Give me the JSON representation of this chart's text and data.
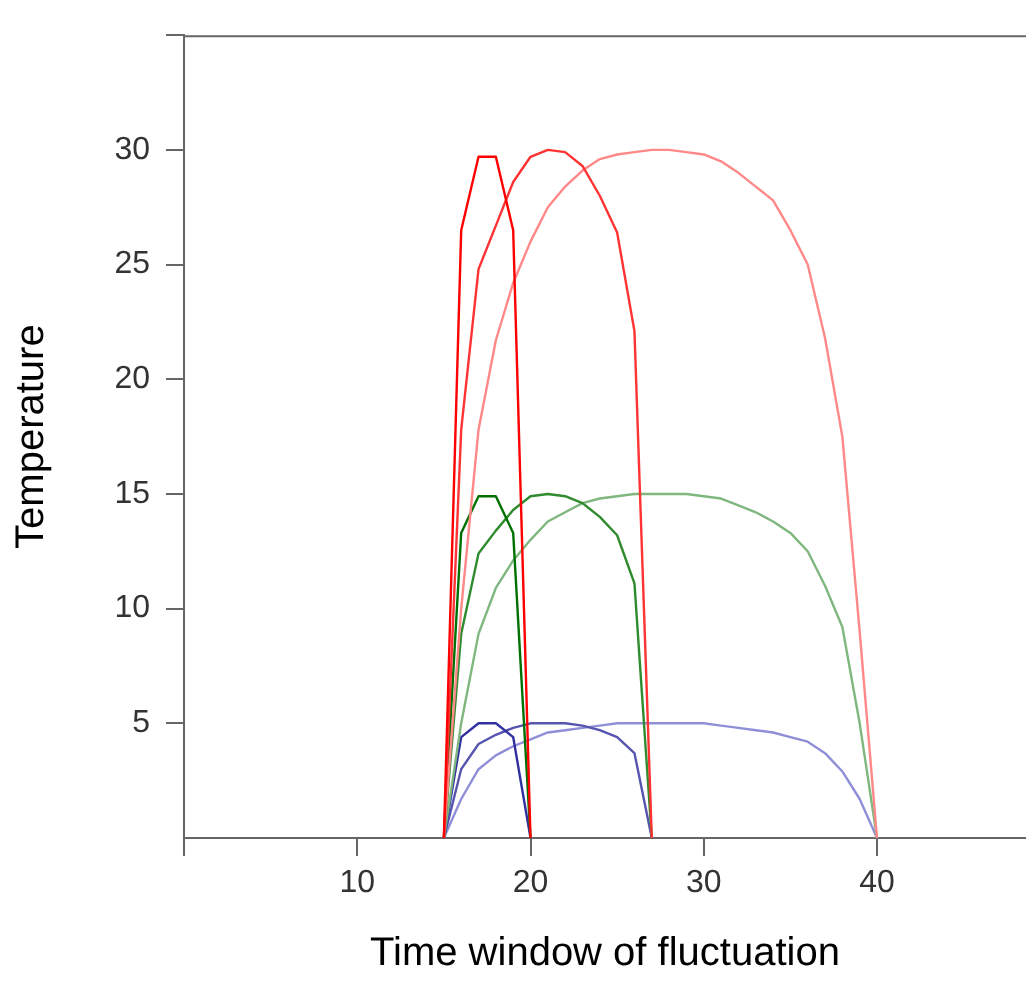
{
  "chart_data": {
    "type": "line",
    "xlabel": "Time window of fluctuation",
    "ylabel": "Temperature",
    "xlim": [
      0,
      48.6
    ],
    "ylim": [
      0,
      35
    ],
    "xticks": [
      {
        "value": 0,
        "label": null
      },
      10,
      20,
      30,
      40
    ],
    "yticks": [
      5,
      10,
      15,
      20,
      25,
      30,
      {
        "value": 35,
        "label": null
      }
    ],
    "marker": "none",
    "legend": false,
    "series": [
      {
        "color": "#ff0000",
        "x": [
          15,
          16,
          17,
          18,
          19,
          20
        ],
        "values": [
          0,
          26.5,
          29.7,
          29.7,
          26.5,
          0
        ]
      },
      {
        "color": "#ff3333",
        "x": [
          15,
          16,
          17,
          18,
          19,
          20,
          21,
          22,
          23,
          24,
          25,
          26,
          27
        ],
        "values": [
          0,
          17.8,
          24.8,
          26.7,
          28.6,
          29.7,
          30,
          29.9,
          29.3,
          28,
          26.4,
          22.1,
          0
        ]
      },
      {
        "color": "#ff8888",
        "x": [
          15,
          16,
          17,
          18,
          19,
          20,
          21,
          22,
          23,
          24,
          25,
          26,
          27,
          28,
          29,
          30,
          31,
          32,
          33,
          34,
          35,
          36,
          37,
          38,
          39,
          40
        ],
        "values": [
          0,
          10,
          17.8,
          21.7,
          24.2,
          26,
          27.5,
          28.4,
          29.1,
          29.6,
          29.8,
          29.9,
          30,
          30,
          29.9,
          29.8,
          29.5,
          29,
          28.4,
          27.8,
          26.5,
          25,
          21.8,
          17.5,
          9,
          0
        ]
      },
      {
        "color": "#007000",
        "x": [
          15,
          16,
          17,
          18,
          19,
          20
        ],
        "values": [
          0,
          13.3,
          14.9,
          14.9,
          13.3,
          0
        ]
      },
      {
        "color": "#2e8b2e",
        "x": [
          15,
          16,
          17,
          18,
          19,
          20,
          21,
          22,
          23,
          24,
          25,
          26,
          27
        ],
        "values": [
          0,
          8.9,
          12.4,
          13.4,
          14.3,
          14.9,
          15,
          14.9,
          14.6,
          14,
          13.2,
          11.1,
          0
        ]
      },
      {
        "color": "#7fb77f",
        "x": [
          15,
          16,
          17,
          18,
          19,
          20,
          21,
          22,
          23,
          24,
          25,
          26,
          27,
          28,
          29,
          30,
          31,
          32,
          33,
          34,
          35,
          36,
          37,
          38,
          39,
          40
        ],
        "values": [
          0,
          5,
          8.9,
          10.9,
          12.1,
          13,
          13.8,
          14.2,
          14.6,
          14.8,
          14.9,
          15,
          15,
          15,
          15,
          14.9,
          14.8,
          14.5,
          14.2,
          13.8,
          13.3,
          12.5,
          11,
          9.2,
          5,
          0
        ]
      },
      {
        "color": "#3030a0",
        "x": [
          15,
          16,
          17,
          18,
          19,
          20
        ],
        "values": [
          0,
          4.4,
          5,
          5,
          4.4,
          0
        ]
      },
      {
        "color": "#5555b0",
        "x": [
          15,
          16,
          17,
          18,
          19,
          20,
          21,
          22,
          23,
          24,
          25,
          26,
          27
        ],
        "values": [
          0,
          3,
          4.1,
          4.5,
          4.8,
          5,
          5,
          5,
          4.9,
          4.7,
          4.4,
          3.7,
          0
        ]
      },
      {
        "color": "#8f8fd8",
        "x": [
          15,
          16,
          17,
          18,
          19,
          20,
          21,
          22,
          23,
          24,
          25,
          26,
          27,
          28,
          29,
          30,
          31,
          32,
          33,
          34,
          35,
          36,
          37,
          38,
          39,
          40
        ],
        "values": [
          0,
          1.7,
          3,
          3.6,
          4,
          4.3,
          4.6,
          4.7,
          4.8,
          4.9,
          5,
          5,
          5,
          5,
          5,
          5,
          4.9,
          4.8,
          4.7,
          4.6,
          4.4,
          4.2,
          3.7,
          2.9,
          1.7,
          0
        ]
      }
    ]
  }
}
